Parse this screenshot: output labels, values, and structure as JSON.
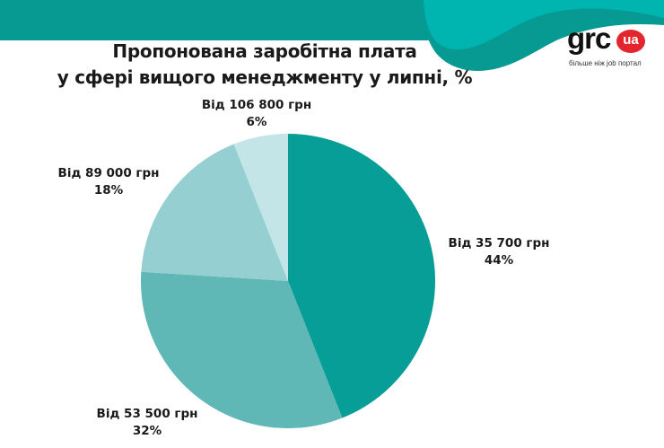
{
  "header": {
    "band_color": "#079a93",
    "wave_color": "#00b5b0",
    "wave_dark_color": "#079a93"
  },
  "title": {
    "line1": "Пропонована заробітна плата",
    "line2": "у сфері вищого менеджменту у липні, %"
  },
  "logo": {
    "text": "grc",
    "badge": "ua",
    "tagline": "більше ніж job портал",
    "badge_color": "#e3262e"
  },
  "chart_data": {
    "type": "pie",
    "title": "Пропонована заробітна плата у сфері вищого менеджменту у липні, %",
    "categories": [
      "Від 35 700 грн",
      "Від 53 500 грн",
      "Від 89 000 грн",
      "Від 106 800 грн"
    ],
    "values": [
      44,
      32,
      18,
      6
    ],
    "unit": "%",
    "colors": [
      "#069e96",
      "#5fb7b6",
      "#95cfd1",
      "#c4e5e8"
    ],
    "start_angle": "12 o'clock, clockwise",
    "legend": "none (direct labels)"
  },
  "labels": [
    {
      "name": "Від 35 700 грн",
      "pct": "44%"
    },
    {
      "name": "Від 53 500 грн",
      "pct": "32%"
    },
    {
      "name": "Від 89 000 грн",
      "pct": "18%"
    },
    {
      "name": "Від 106 800 грн",
      "pct": "6%"
    }
  ]
}
